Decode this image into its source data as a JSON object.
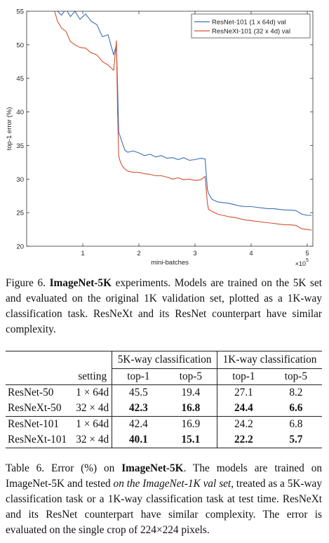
{
  "chart_data": {
    "type": "line",
    "title": "",
    "xlabel": "mini-batches",
    "ylabel": "top-1 error (%)",
    "x_scale_label": "×10",
    "x_scale_exp": "5",
    "xlim": [
      0.0,
      5.1
    ],
    "ylim": [
      20,
      55
    ],
    "xticks": [
      "1",
      "2",
      "3",
      "4",
      "5"
    ],
    "yticks": [
      "20",
      "25",
      "30",
      "35",
      "40",
      "45",
      "50",
      "55"
    ],
    "grid": false,
    "legend_position": "top-right",
    "series": [
      {
        "name": "ResNet-101 (1 x 64d) val",
        "color": "#3a6fb5",
        "x": [
          0.48,
          0.55,
          0.62,
          0.7,
          0.78,
          0.86,
          0.95,
          1.05,
          1.15,
          1.25,
          1.35,
          1.45,
          1.55,
          1.6,
          1.62,
          1.64,
          1.66,
          1.7,
          1.75,
          1.8,
          1.9,
          2.0,
          2.1,
          2.2,
          2.3,
          2.4,
          2.5,
          2.6,
          2.7,
          2.8,
          2.9,
          3.0,
          3.1,
          3.18,
          3.22,
          3.24,
          3.3,
          3.4,
          3.5,
          3.6,
          3.7,
          3.8,
          3.9,
          4.0,
          4.1,
          4.2,
          4.3,
          4.4,
          4.5,
          4.6,
          4.7,
          4.8,
          4.9,
          5.0,
          5.08
        ],
        "y": [
          55.5,
          55.0,
          54.4,
          55.3,
          54.2,
          55.0,
          53.8,
          54.6,
          53.5,
          53.0,
          51.2,
          51.5,
          48.5,
          50.0,
          44.0,
          37.0,
          36.5,
          35.5,
          34.3,
          34.0,
          34.2,
          33.9,
          33.5,
          33.7,
          33.3,
          33.5,
          33.1,
          33.2,
          32.9,
          33.2,
          32.8,
          32.9,
          33.1,
          33.0,
          28.5,
          27.9,
          27.0,
          26.6,
          26.5,
          26.4,
          26.2,
          26.0,
          25.9,
          25.9,
          25.8,
          25.7,
          25.6,
          25.6,
          25.5,
          25.4,
          25.4,
          25.3,
          24.8,
          24.6,
          24.6
        ]
      },
      {
        "name": "ResNeXt-101 (32 x 4d) val",
        "color": "#d4502f",
        "x": [
          0.48,
          0.55,
          0.62,
          0.7,
          0.78,
          0.86,
          0.95,
          1.05,
          1.15,
          1.25,
          1.35,
          1.45,
          1.55,
          1.6,
          1.62,
          1.64,
          1.66,
          1.7,
          1.75,
          1.8,
          1.9,
          2.0,
          2.1,
          2.2,
          2.3,
          2.4,
          2.5,
          2.6,
          2.7,
          2.8,
          2.9,
          3.0,
          3.1,
          3.18,
          3.22,
          3.24,
          3.3,
          3.4,
          3.5,
          3.6,
          3.7,
          3.8,
          3.9,
          4.0,
          4.1,
          4.2,
          4.3,
          4.4,
          4.5,
          4.6,
          4.7,
          4.8,
          4.9,
          5.0,
          5.08
        ],
        "y": [
          55.5,
          53.5,
          52.5,
          52.0,
          50.5,
          50.0,
          49.6,
          49.5,
          48.8,
          48.5,
          47.5,
          47.0,
          46.2,
          50.6,
          40.0,
          33.5,
          32.8,
          32.0,
          31.5,
          31.2,
          31.0,
          31.0,
          30.8,
          30.7,
          30.5,
          30.5,
          30.3,
          30.0,
          30.2,
          29.9,
          30.0,
          29.8,
          29.9,
          30.4,
          26.5,
          25.5,
          25.2,
          24.8,
          24.6,
          24.4,
          24.3,
          24.1,
          23.9,
          23.8,
          23.7,
          23.6,
          23.5,
          23.4,
          23.3,
          23.2,
          23.2,
          23.1,
          22.6,
          22.5,
          22.4
        ]
      }
    ]
  },
  "figure_caption": {
    "prefix": "Figure 6.",
    "bold": "ImageNet-5K",
    "rest": "experiments. Models are trained on the 5K set and evaluated on the original 1K validation set, plotted as a 1K-way classification task. ResNeXt and its ResNet counterpart have similar complexity."
  },
  "table": {
    "group_headers": [
      "5K-way classification",
      "1K-way classification"
    ],
    "columns": [
      "setting",
      "top-1",
      "top-5",
      "top-1",
      "top-5"
    ],
    "rows": [
      {
        "model": "ResNet-50",
        "setting": "1 × 64d",
        "v": [
          "45.5",
          "19.4",
          "27.1",
          "8.2"
        ],
        "bold": false
      },
      {
        "model": "ResNeXt-50",
        "setting": "32 × 4d",
        "v": [
          "42.3",
          "16.8",
          "24.4",
          "6.6"
        ],
        "bold": true
      },
      {
        "model": "ResNet-101",
        "setting": "1 × 64d",
        "v": [
          "42.4",
          "16.9",
          "24.2",
          "6.8"
        ],
        "bold": false
      },
      {
        "model": "ResNeXt-101",
        "setting": "32 × 4d",
        "v": [
          "40.1",
          "15.1",
          "22.2",
          "5.7"
        ],
        "bold": true
      }
    ]
  },
  "table_caption": {
    "prefix": "Table 6. Error (%) on",
    "bold": "ImageNet-5K",
    "part2": ". The models are trained on ImageNet-5K and tested",
    "italic": "on the ImageNet-1K val set",
    "part3": ", treated as a 5K-way classification task or a 1K-way classification task at test time. ResNeXt and its ResNet counterpart have similar complexity. The error is evaluated on the single crop of 224×224 pixels."
  }
}
